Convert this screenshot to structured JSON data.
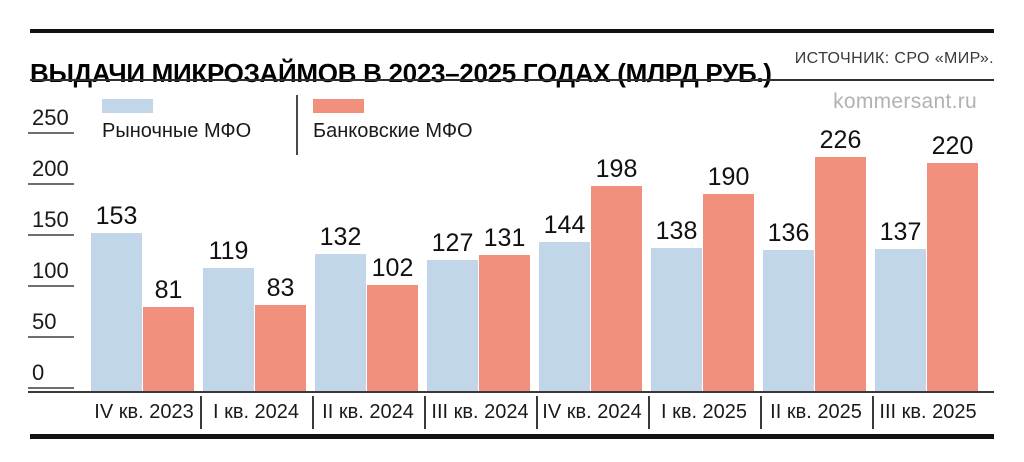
{
  "header": {
    "title": "ВЫДАЧИ МИКРОЗАЙМОВ В 2023–2025 ГОДАХ (МЛРД РУБ.)",
    "source": "ИСТОЧНИК: СРО «МИР».",
    "watermark": "kommersant.ru"
  },
  "legend": {
    "items": [
      {
        "label": "Рыночные МФО",
        "color": "#c1d7e9"
      },
      {
        "label": "Банковские МФО",
        "color": "#f2907e"
      }
    ]
  },
  "chart_data": {
    "type": "bar",
    "title": "ВЫДАЧИ МИКРОЗАЙМОВ В 2023–2025 ГОДАХ (МЛРД РУБ.)",
    "categories": [
      "IV кв. 2023",
      "I кв. 2024",
      "II кв. 2024",
      "III кв. 2024",
      "IV кв. 2024",
      "I кв. 2025",
      "II кв. 2025",
      "III кв. 2025"
    ],
    "series": [
      {
        "name": "Рыночные МФО",
        "color": "#c1d7e9",
        "values": [
          153,
          119,
          132,
          127,
          144,
          138,
          136,
          137
        ]
      },
      {
        "name": "Банковские МФО",
        "color": "#f2907e",
        "values": [
          81,
          83,
          102,
          131,
          198,
          190,
          226,
          220
        ]
      }
    ],
    "ylabel": "млрд руб.",
    "ylim": [
      0,
      250
    ],
    "yticks": [
      0,
      50,
      100,
      150,
      200,
      250
    ],
    "grid": false,
    "legend_position": "top-left",
    "value_labels": true,
    "colors": {
      "text": "#111111",
      "axis": "#3a3a3a",
      "watermark": "#b2b2b6"
    }
  }
}
